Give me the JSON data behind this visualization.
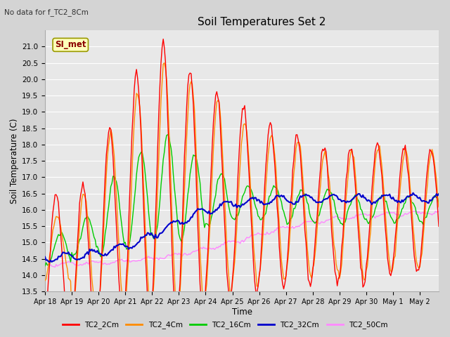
{
  "title": "Soil Temperatures Set 2",
  "subtitle": "No data for f_TC2_8Cm",
  "xlabel": "Time",
  "ylabel": "Soil Temperature (C)",
  "ylim": [
    13.5,
    21.5
  ],
  "fig_bg_color": "#d4d4d4",
  "plot_bg_color": "#e8e8e8",
  "grid_color": "#ffffff",
  "legend_label": "SI_met",
  "series_colors": {
    "TC2_2Cm": "#ff0000",
    "TC2_4Cm": "#ff8c00",
    "TC2_16Cm": "#00cc00",
    "TC2_32Cm": "#0000cc",
    "TC2_50Cm": "#ff88ff"
  },
  "legend_entries": [
    "TC2_2Cm",
    "TC2_4Cm",
    "TC2_16Cm",
    "TC2_32Cm",
    "TC2_50Cm"
  ],
  "yticks": [
    13.5,
    14.0,
    14.5,
    15.0,
    15.5,
    16.0,
    16.5,
    17.0,
    17.5,
    18.0,
    18.5,
    19.0,
    19.5,
    20.0,
    20.5,
    21.0
  ],
  "xlabels": [
    "Apr 18",
    "Apr 19",
    "Apr 20",
    "Apr 21",
    "Apr 22",
    "Apr 23",
    "Apr 24",
    "Apr 25",
    "Apr 26",
    "Apr 27",
    "Apr 28",
    "Apr 29",
    "Apr 30",
    "May 1",
    "May 2"
  ]
}
